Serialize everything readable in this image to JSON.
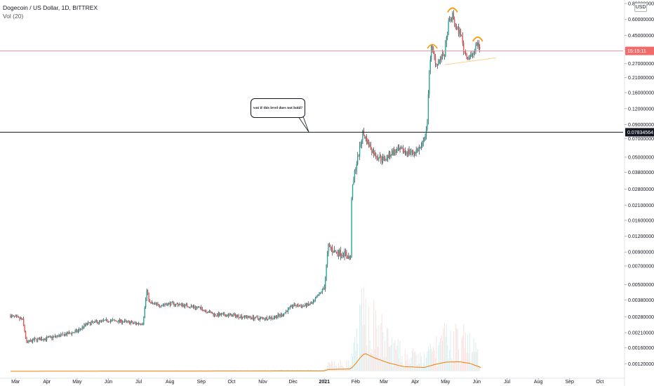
{
  "header": {
    "symbol_line": "Dogecoin / US Dollar, 1D, BITTREX",
    "volume_label": "Vol (20)",
    "currency": "USD"
  },
  "annotation": {
    "text": "wot if this level does not hold?"
  },
  "price_tags": {
    "current_time": "15:15:11",
    "level": "0.07834564"
  },
  "colors": {
    "up": "#26a69a",
    "down": "#ef5350",
    "wick": "#131722",
    "volume_ma": "#f57c00",
    "current_line": "#f08b8b",
    "trendline": "#ffd08a",
    "marker": "#ff9800"
  },
  "chart_data": {
    "type": "candlestick",
    "title": "Dogecoin / US Dollar, 1D, BITTREX",
    "y_scale": "log",
    "y_ticks": [
      "0.00120000",
      "0.00160000",
      "0.00210000",
      "0.00280000",
      "0.00380000",
      "0.00500000",
      "0.00700000",
      "0.00900000",
      "0.01200000",
      "0.01600000",
      "0.02100000",
      "0.02800000",
      "0.03800000",
      "0.05000000",
      "0.07000000",
      "0.09000000",
      "0.12000000",
      "0.16000000",
      "0.21000000",
      "0.27000000",
      "0.35000000",
      "0.45000000",
      "0.60000000",
      "0.80000000"
    ],
    "x_ticks": [
      "Mar",
      "Apr",
      "May",
      "Jun",
      "Jul",
      "Aug",
      "Sep",
      "Oct",
      "Nov",
      "Dec",
      "2021",
      "Feb",
      "Mar",
      "Apr",
      "May",
      "Jun",
      "Jul",
      "Aug",
      "Sep",
      "Oct"
    ],
    "x_tick_dates": [
      "2020-03-01",
      "2020-04-01",
      "2020-05-01",
      "2020-06-01",
      "2020-07-01",
      "2020-08-01",
      "2020-09-01",
      "2020-10-01",
      "2020-11-01",
      "2020-12-01",
      "2021-01-01",
      "2021-02-01",
      "2021-03-01",
      "2021-04-01",
      "2021-05-01",
      "2021-06-01",
      "2021-07-01",
      "2021-08-01",
      "2021-09-01",
      "2021-10-01"
    ],
    "price_path": [
      [
        "2020-02-25",
        0.00285
      ],
      [
        "2020-03-08",
        0.00265
      ],
      [
        "2020-03-12",
        0.00175
      ],
      [
        "2020-03-20",
        0.00185
      ],
      [
        "2020-04-01",
        0.0019
      ],
      [
        "2020-04-15",
        0.002
      ],
      [
        "2020-05-01",
        0.00215
      ],
      [
        "2020-05-10",
        0.00245
      ],
      [
        "2020-05-20",
        0.00255
      ],
      [
        "2020-06-01",
        0.00262
      ],
      [
        "2020-06-15",
        0.00258
      ],
      [
        "2020-06-28",
        0.00248
      ],
      [
        "2020-07-05",
        0.0025
      ],
      [
        "2020-07-07",
        0.0033
      ],
      [
        "2020-07-09",
        0.0045
      ],
      [
        "2020-07-12",
        0.0036
      ],
      [
        "2020-07-20",
        0.00345
      ],
      [
        "2020-08-01",
        0.00355
      ],
      [
        "2020-08-10",
        0.0035
      ],
      [
        "2020-08-20",
        0.0034
      ],
      [
        "2020-09-01",
        0.00325
      ],
      [
        "2020-09-15",
        0.0029
      ],
      [
        "2020-10-01",
        0.00288
      ],
      [
        "2020-10-15",
        0.0028
      ],
      [
        "2020-10-28",
        0.00272
      ],
      [
        "2020-11-10",
        0.00276
      ],
      [
        "2020-11-20",
        0.0029
      ],
      [
        "2020-12-01",
        0.00345
      ],
      [
        "2020-12-10",
        0.0034
      ],
      [
        "2020-12-20",
        0.00355
      ],
      [
        "2020-12-27",
        0.0042
      ],
      [
        "2021-01-01",
        0.0048
      ],
      [
        "2021-01-03",
        0.007
      ],
      [
        "2021-01-05",
        0.01
      ],
      [
        "2021-01-12",
        0.009
      ],
      [
        "2021-01-20",
        0.0088
      ],
      [
        "2021-01-27",
        0.008
      ],
      [
        "2021-01-28",
        0.025
      ],
      [
        "2021-01-31",
        0.038
      ],
      [
        "2021-02-04",
        0.053
      ],
      [
        "2021-02-08",
        0.078
      ],
      [
        "2021-02-12",
        0.067
      ],
      [
        "2021-02-20",
        0.052
      ],
      [
        "2021-03-01",
        0.048
      ],
      [
        "2021-03-10",
        0.055
      ],
      [
        "2021-03-20",
        0.056
      ],
      [
        "2021-03-30",
        0.054
      ],
      [
        "2021-04-08",
        0.06
      ],
      [
        "2021-04-13",
        0.09
      ],
      [
        "2021-04-15",
        0.25
      ],
      [
        "2021-04-17",
        0.36
      ],
      [
        "2021-04-22",
        0.27
      ],
      [
        "2021-04-30",
        0.32
      ],
      [
        "2021-05-04",
        0.55
      ],
      [
        "2021-05-08",
        0.64
      ],
      [
        "2021-05-12",
        0.5
      ],
      [
        "2021-05-16",
        0.47
      ],
      [
        "2021-05-19",
        0.35
      ],
      [
        "2021-05-23",
        0.3
      ],
      [
        "2021-05-27",
        0.31
      ],
      [
        "2021-06-02",
        0.39
      ],
      [
        "2021-06-04",
        0.36
      ]
    ],
    "volume_ma_path": [
      [
        "2020-02-25",
        0.0
      ],
      [
        "2021-01-01",
        0.02
      ],
      [
        "2021-01-05",
        0.1
      ],
      [
        "2021-01-27",
        0.12
      ],
      [
        "2021-02-01",
        0.4
      ],
      [
        "2021-02-06",
        0.75
      ],
      [
        "2021-02-10",
        0.95
      ],
      [
        "2021-02-20",
        0.7
      ],
      [
        "2021-03-05",
        0.45
      ],
      [
        "2021-03-20",
        0.25
      ],
      [
        "2021-04-10",
        0.2
      ],
      [
        "2021-04-20",
        0.35
      ],
      [
        "2021-05-01",
        0.48
      ],
      [
        "2021-05-15",
        0.5
      ],
      [
        "2021-05-25",
        0.42
      ],
      [
        "2021-06-05",
        0.2
      ]
    ],
    "levels": [
      {
        "name": "horizontal support",
        "value": 0.07834564
      },
      {
        "name": "current price line",
        "value": 0.34
      }
    ],
    "trendline": [
      [
        "2021-04-30",
        0.265
      ],
      [
        "2021-06-20",
        0.3
      ]
    ],
    "markers": [
      {
        "shape": "arc",
        "date": "2021-05-08",
        "value": 0.71
      },
      {
        "shape": "arc",
        "date": "2021-06-02",
        "value": 0.42
      }
    ],
    "volume_ma_label": "Vol (20)"
  }
}
